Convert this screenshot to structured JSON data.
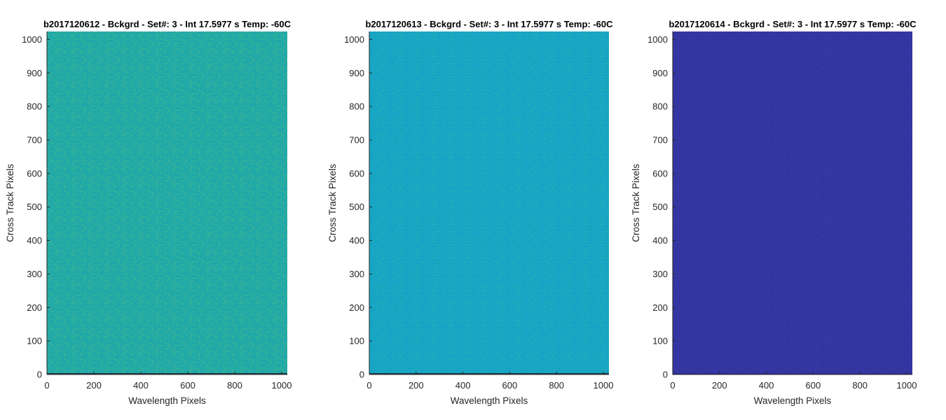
{
  "chart_data": [
    {
      "type": "heatmap",
      "title": "b2017120612 - Bckgrd - Set#: 3 - Int 17.5977 s Temp: -60C",
      "xlabel": "Wavelength Pixels",
      "ylabel": "Cross Track Pixels",
      "xlim": [
        0,
        1024
      ],
      "ylim": [
        0,
        1024
      ],
      "xticks": [
        0,
        200,
        400,
        600,
        800,
        1000
      ],
      "yticks": [
        0,
        100,
        200,
        300,
        400,
        500,
        600,
        700,
        800,
        900,
        1000
      ],
      "base_color": "#22aaa6",
      "noise_colors": [
        "#4cbb86",
        "#1b9db6"
      ],
      "bottom_row_color": "#1d3b4a"
    },
    {
      "type": "heatmap",
      "title": "b2017120613 - Bckgrd - Set#: 3 - Int 17.5977 s Temp: -60C",
      "xlabel": "Wavelength Pixels",
      "ylabel": "Cross Track Pixels",
      "xlim": [
        0,
        1024
      ],
      "ylim": [
        0,
        1024
      ],
      "xticks": [
        0,
        200,
        400,
        600,
        800,
        1000
      ],
      "yticks": [
        0,
        100,
        200,
        300,
        400,
        500,
        600,
        700,
        800,
        900,
        1000
      ],
      "base_color": "#17a6c4",
      "noise_colors": [
        "#2bb4ae",
        "#1697cf"
      ],
      "bottom_row_color": "#1d3b4a"
    },
    {
      "type": "heatmap",
      "title": "b2017120614 - Bckgrd - Set#: 3 - Int 17.5977 s Temp: -60C",
      "xlabel": "Wavelength Pixels",
      "ylabel": "Cross Track Pixels",
      "xlim": [
        0,
        1024
      ],
      "ylim": [
        0,
        1024
      ],
      "xticks": [
        0,
        200,
        400,
        600,
        800,
        1000
      ],
      "yticks": [
        0,
        100,
        200,
        300,
        400,
        500,
        600,
        700,
        800,
        900,
        1000
      ],
      "base_color": "#3535a2",
      "noise_colors": [
        "#3a3cab",
        "#30309a"
      ],
      "bottom_row_color": "#30309a"
    }
  ]
}
